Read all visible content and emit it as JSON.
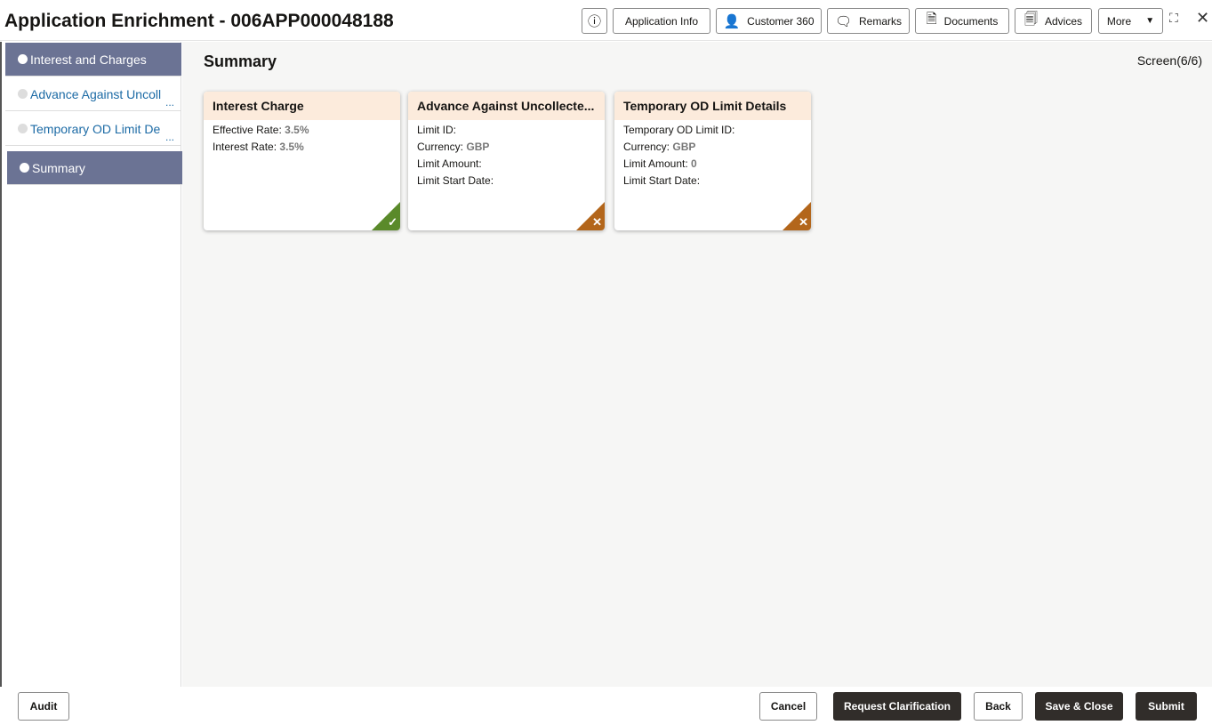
{
  "header": {
    "title": "Application Enrichment - 006APP000048188",
    "buttons": {
      "info_icon": "info-icon",
      "app_info": "Application Info",
      "customer360": "Customer 360",
      "remarks": "Remarks",
      "documents": "Documents",
      "advices": "Advices",
      "more": "More"
    }
  },
  "sidebar": {
    "items": [
      {
        "label": "Interest and Charges"
      },
      {
        "label": "Advance Against Uncoll"
      },
      {
        "label": "Temporary OD Limit De"
      },
      {
        "label": "Summary"
      }
    ],
    "ellipsis": "..."
  },
  "main": {
    "title": "Summary",
    "screen": "Screen(6/6)",
    "cards": [
      {
        "title": "Interest Charge",
        "rows": [
          {
            "label": "Effective Rate:",
            "value": "3.5%"
          },
          {
            "label": "Interest Rate:",
            "value": "3.5%"
          }
        ],
        "status": "complete"
      },
      {
        "title": "Advance Against Uncollecte...",
        "rows": [
          {
            "label": "Limit ID:",
            "value": ""
          },
          {
            "label": "Currency:",
            "value": "GBP"
          },
          {
            "label": "Limit Amount:",
            "value": ""
          },
          {
            "label": "Limit Start Date:",
            "value": ""
          }
        ],
        "status": "incomplete"
      },
      {
        "title": "Temporary OD Limit Details",
        "rows": [
          {
            "label": "Temporary OD Limit ID:",
            "value": ""
          },
          {
            "label": "Currency:",
            "value": "GBP"
          },
          {
            "label": "Limit Amount:",
            "value": "0"
          },
          {
            "label": "Limit Start Date:",
            "value": ""
          }
        ],
        "status": "incomplete"
      }
    ]
  },
  "footer": {
    "audit": "Audit",
    "cancel": "Cancel",
    "request": "Request Clarification",
    "back": "Back",
    "save_close": "Save & Close",
    "submit": "Submit"
  }
}
